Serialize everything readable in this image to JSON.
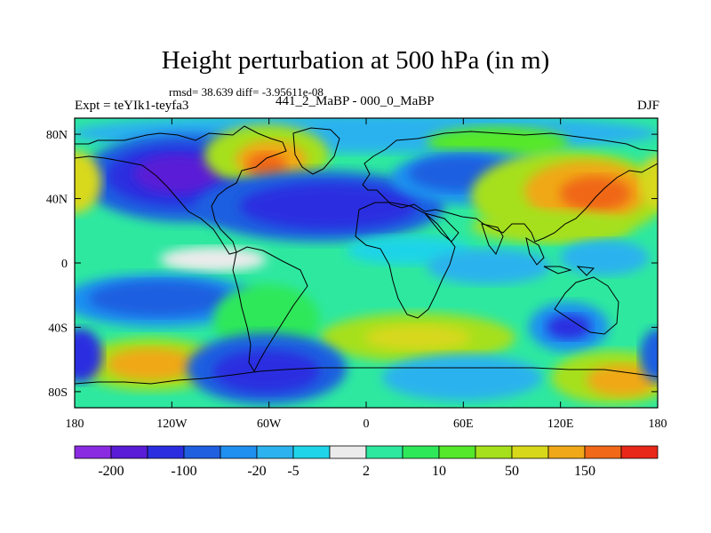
{
  "title": "Height perturbation at 500 hPa (in m)",
  "stats_line": "rmsd= 38.639 diff= -3.95611e-08",
  "experiment_label": "Expt = teYIk1-teyfa3",
  "subtitle": "441_2_MaBP - 000_0_MaBP",
  "season": "DJF",
  "chart_data": {
    "type": "heatmap",
    "title": "Height perturbation at 500 hPa (in m)",
    "x_ticks": [
      "180",
      "120W",
      "60W",
      "0",
      "60E",
      "120E",
      "180"
    ],
    "y_ticks": [
      "80N",
      "40N",
      "0",
      "40S",
      "80S"
    ],
    "xlim": [
      -180,
      180
    ],
    "ylim": [
      -90,
      90
    ],
    "colorbar": {
      "tick_labels": [
        "-200",
        "-100",
        "-20",
        "-5",
        "2",
        "10",
        "50",
        "150"
      ],
      "colors": [
        "#8a2be2",
        "#5a1cd6",
        "#2a2ee0",
        "#1f5fe0",
        "#1f8ff0",
        "#2cb2ee",
        "#1fd4e8",
        "#ebebeb",
        "#2ee8a0",
        "#2fe85a",
        "#55e82a",
        "#a6e01c",
        "#d8d81a",
        "#f0a819",
        "#f06818",
        "#e82818"
      ]
    },
    "field_description": "500 hPa geopotential height difference, DJF"
  }
}
